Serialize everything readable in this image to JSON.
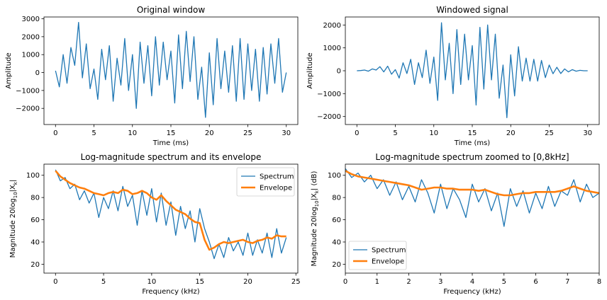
{
  "chart_data": [
    {
      "type": "line",
      "title": "Original window",
      "xlabel": "Time (ms)",
      "ylabel": "Amplitude",
      "xlim": [
        -1.5,
        31.5
      ],
      "ylim": [
        -2900,
        3100
      ],
      "xticks": [
        0,
        5,
        10,
        15,
        20,
        25,
        30
      ],
      "yticks": [
        -2000,
        -1000,
        0,
        1000,
        2000,
        3000
      ],
      "xtick_labels": [
        "0",
        "5",
        "10",
        "15",
        "20",
        "25",
        "30"
      ],
      "ytick_labels": [
        "−2000",
        "−1000",
        "0",
        "1000",
        "2000",
        "3000"
      ],
      "series": [
        {
          "color": "#1f77b4",
          "x": [
            0,
            0.5,
            1,
            1.5,
            2,
            2.5,
            3,
            3.5,
            4,
            4.5,
            5,
            5.5,
            6,
            6.5,
            7,
            7.5,
            8,
            8.5,
            9,
            9.5,
            10,
            10.5,
            11,
            11.5,
            12,
            12.5,
            13,
            13.5,
            14,
            14.5,
            15,
            15.5,
            16,
            16.5,
            17,
            17.5,
            18,
            18.5,
            19,
            19.5,
            20,
            20.5,
            21,
            21.5,
            22,
            22.5,
            23,
            23.5,
            24,
            24.5,
            25,
            25.5,
            26,
            26.5,
            27,
            27.5,
            28,
            28.5,
            29,
            29.5,
            30
          ],
          "y": [
            100,
            -800,
            1000,
            -600,
            1400,
            400,
            2800,
            -300,
            1600,
            -900,
            200,
            -1500,
            1300,
            -400,
            1500,
            -1600,
            800,
            -700,
            1900,
            -1000,
            1000,
            -2000,
            1700,
            -600,
            1500,
            -1300,
            2000,
            -700,
            1700,
            -400,
            1200,
            -1700,
            2100,
            -900,
            2300,
            -500,
            2000,
            -1500,
            300,
            -2500,
            1100,
            -1800,
            1900,
            -900,
            1200,
            -1100,
            1500,
            -1600,
            1900,
            -1500,
            1600,
            -1000,
            1300,
            -1600,
            1400,
            -1200,
            1600,
            -600,
            1900,
            -1100,
            0
          ]
        }
      ]
    },
    {
      "type": "line",
      "title": "Windowed signal",
      "xlabel": "Time (ms)",
      "ylabel": "Amplitude",
      "xlim": [
        -1.5,
        31.5
      ],
      "ylim": [
        -2350,
        2350
      ],
      "xticks": [
        0,
        5,
        10,
        15,
        20,
        25,
        30
      ],
      "yticks": [
        -2000,
        -1000,
        0,
        1000,
        2000
      ],
      "xtick_labels": [
        "0",
        "5",
        "10",
        "15",
        "20",
        "25",
        "30"
      ],
      "ytick_labels": [
        "−2000",
        "−1000",
        "0",
        "1000",
        "2000"
      ],
      "series": [
        {
          "color": "#1f77b4",
          "x": [
            0,
            0.5,
            1,
            1.5,
            2,
            2.5,
            3,
            3.5,
            4,
            4.5,
            5,
            5.5,
            6,
            6.5,
            7,
            7.5,
            8,
            8.5,
            9,
            9.5,
            10,
            10.5,
            11,
            11.5,
            12,
            12.5,
            13,
            13.5,
            14,
            14.5,
            15,
            15.5,
            16,
            16.5,
            17,
            17.5,
            18,
            18.5,
            19,
            19.5,
            20,
            20.5,
            21,
            21.5,
            22,
            22.5,
            23,
            23.5,
            24,
            24.5,
            25,
            25.5,
            26,
            26.5,
            27,
            27.5,
            28,
            28.5,
            29,
            29.5,
            30
          ],
          "y": [
            0,
            10,
            30,
            -20,
            80,
            30,
            180,
            -50,
            200,
            -150,
            50,
            -320,
            350,
            -120,
            500,
            -600,
            350,
            -300,
            900,
            -550,
            600,
            -1300,
            2100,
            -400,
            1200,
            -1000,
            1800,
            -600,
            1600,
            -400,
            1100,
            -1500,
            1900,
            -800,
            2000,
            -400,
            1600,
            -1200,
            250,
            -2050,
            700,
            -1100,
            1050,
            -450,
            550,
            -450,
            500,
            -450,
            450,
            -300,
            250,
            -130,
            150,
            -120,
            80,
            -50,
            50,
            -20,
            20,
            0,
            0
          ]
        }
      ]
    },
    {
      "type": "line",
      "title": "Log-magnitude spectrum and its envelope",
      "xlabel": "Frequency (kHz)",
      "ylabel_main": "Magnitude 20log",
      "ylabel_sub": "10",
      "ylabel_tail": "|X",
      "ylabel_k": "k",
      "ylabel_end": "|",
      "xlim": [
        -1.2,
        25.2
      ],
      "ylim": [
        12,
        110
      ],
      "xticks": [
        0,
        5,
        10,
        15,
        20,
        25
      ],
      "yticks": [
        20,
        40,
        60,
        80,
        100
      ],
      "xtick_labels": [
        "0",
        "5",
        "10",
        "15",
        "20",
        "25"
      ],
      "ytick_labels": [
        "20",
        "40",
        "60",
        "80",
        "100"
      ],
      "legend": [
        "Spectrum",
        "Envelope"
      ],
      "legend_position": "upper right",
      "series": [
        {
          "name": "Spectrum",
          "color": "#1f77b4",
          "x": [
            0,
            0.5,
            1,
            1.5,
            2,
            2.5,
            3,
            3.5,
            4,
            4.5,
            5,
            5.5,
            6,
            6.5,
            7,
            7.5,
            8,
            8.5,
            9,
            9.5,
            10,
            10.5,
            11,
            11.5,
            12,
            12.5,
            13,
            13.5,
            14,
            14.5,
            15,
            15.5,
            16,
            16.5,
            17,
            17.5,
            18,
            18.5,
            19,
            19.5,
            20,
            20.5,
            21,
            21.5,
            22,
            22.5,
            23,
            23.5,
            24
          ],
          "y": [
            105,
            95,
            98,
            88,
            92,
            78,
            86,
            75,
            84,
            62,
            80,
            70,
            86,
            68,
            90,
            72,
            82,
            55,
            86,
            64,
            88,
            58,
            84,
            55,
            76,
            46,
            72,
            52,
            68,
            40,
            70,
            52,
            40,
            25,
            38,
            26,
            44,
            32,
            40,
            28,
            48,
            28,
            42,
            30,
            48,
            26,
            52,
            30,
            44
          ]
        },
        {
          "name": "Envelope",
          "color": "#ff7f0e",
          "x": [
            0,
            0.5,
            1,
            1.5,
            2,
            2.5,
            3,
            3.5,
            4,
            4.5,
            5,
            5.5,
            6,
            6.5,
            7,
            7.5,
            8,
            8.5,
            9,
            9.5,
            10,
            10.5,
            11,
            11.5,
            12,
            12.5,
            13,
            13.5,
            14,
            14.5,
            15,
            15.5,
            16,
            16.5,
            17,
            17.5,
            18,
            18.5,
            19,
            19.5,
            20,
            20.5,
            21,
            21.5,
            22,
            22.5,
            23,
            23.5,
            24
          ],
          "y": [
            104,
            99,
            96,
            93,
            91,
            89,
            88,
            86,
            84,
            83,
            82,
            84,
            85,
            84,
            87,
            86,
            83,
            84,
            86,
            84,
            80,
            78,
            82,
            77,
            73,
            69,
            67,
            65,
            61,
            58,
            57,
            42,
            33,
            35,
            38,
            40,
            39,
            40,
            41,
            42,
            40,
            39,
            41,
            42,
            44,
            43,
            46,
            45,
            45
          ]
        }
      ]
    },
    {
      "type": "line",
      "title": "Log-magnitude spectrum zoomed to [0,8kHz]",
      "xlabel": "Frequency (kHz)",
      "ylabel_main": "Magnitude 20log",
      "ylabel_sub": "10",
      "ylabel_tail": "|X",
      "ylabel_k": "k",
      "ylabel_end": "| (dB)",
      "xlim": [
        0,
        8
      ],
      "ylim": [
        12,
        110
      ],
      "xticks": [
        0,
        1,
        2,
        3,
        4,
        5,
        6,
        7,
        8
      ],
      "yticks": [
        20,
        40,
        60,
        80,
        100
      ],
      "xtick_labels": [
        "0",
        "1",
        "2",
        "3",
        "4",
        "5",
        "6",
        "7",
        "8"
      ],
      "ytick_labels": [
        "20",
        "40",
        "60",
        "80",
        "100"
      ],
      "legend": [
        "Spectrum",
        "Envelope"
      ],
      "legend_position": "lower left",
      "series": [
        {
          "name": "Spectrum",
          "color": "#1f77b4",
          "x": [
            0,
            0.2,
            0.4,
            0.6,
            0.8,
            1,
            1.2,
            1.4,
            1.6,
            1.8,
            2,
            2.2,
            2.4,
            2.6,
            2.8,
            3,
            3.2,
            3.4,
            3.6,
            3.8,
            4,
            4.2,
            4.4,
            4.6,
            4.8,
            5,
            5.2,
            5.4,
            5.6,
            5.8,
            6,
            6.2,
            6.4,
            6.6,
            6.8,
            7,
            7.2,
            7.4,
            7.6,
            7.8,
            8
          ],
          "y": [
            106,
            98,
            102,
            94,
            100,
            88,
            96,
            82,
            94,
            78,
            90,
            76,
            96,
            84,
            66,
            92,
            70,
            88,
            78,
            62,
            92,
            76,
            88,
            68,
            84,
            54,
            88,
            72,
            86,
            66,
            84,
            70,
            90,
            72,
            86,
            82,
            96,
            76,
            92,
            80,
            84
          ]
        },
        {
          "name": "Envelope",
          "color": "#ff7f0e",
          "x": [
            0,
            0.2,
            0.4,
            0.6,
            0.8,
            1,
            1.2,
            1.4,
            1.6,
            1.8,
            2,
            2.2,
            2.4,
            2.6,
            2.8,
            3,
            3.2,
            3.4,
            3.6,
            3.8,
            4,
            4.2,
            4.4,
            4.6,
            4.8,
            5,
            5.2,
            5.4,
            5.6,
            5.8,
            6,
            6.2,
            6.4,
            6.6,
            6.8,
            7,
            7.2,
            7.4,
            7.6,
            7.8,
            8
          ],
          "y": [
            104,
            101,
            99,
            98,
            97,
            96,
            95,
            94,
            93,
            92,
            91,
            89,
            87,
            88,
            89,
            89,
            88,
            88,
            87,
            87,
            87,
            86,
            87,
            85,
            83,
            82,
            82,
            83,
            84,
            84,
            85,
            85,
            85,
            85,
            86,
            88,
            90,
            88,
            86,
            85,
            84
          ]
        }
      ]
    }
  ]
}
